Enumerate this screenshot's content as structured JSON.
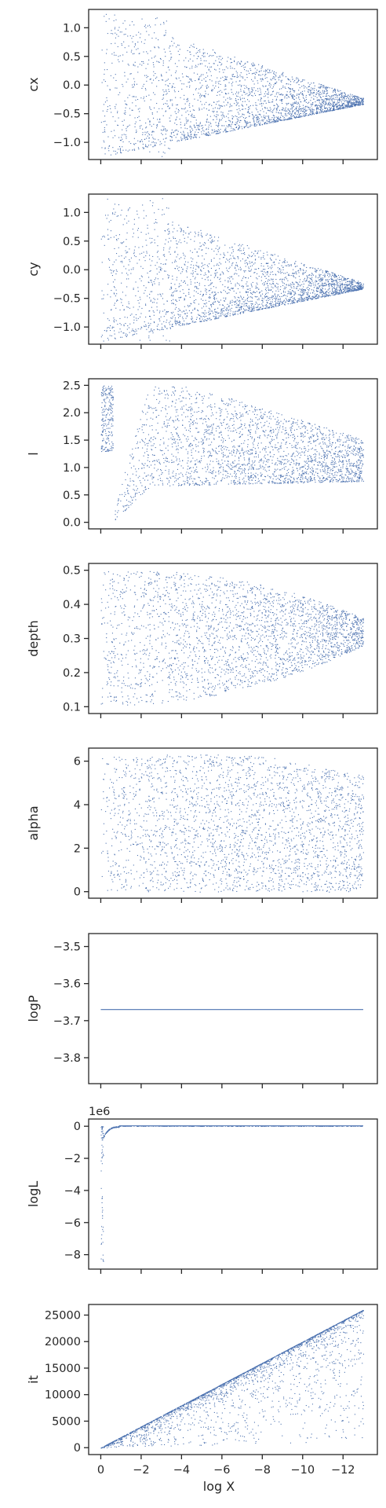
{
  "chart_data": [
    {
      "type": "scatter",
      "ylabel": "cx",
      "yticks": [
        "1.0",
        "0.5",
        "0.0",
        "−0.5",
        "−1.0"
      ],
      "ylim": [
        -1.3,
        1.32
      ],
      "series": [
        {
          "color": "#4c72b0",
          "marker": "point"
        }
      ]
    },
    {
      "type": "scatter",
      "ylabel": "cy",
      "yticks": [
        "1.0",
        "0.5",
        "0.0",
        "−0.5",
        "−1.0"
      ],
      "ylim": [
        -1.3,
        1.32
      ],
      "series": [
        {
          "color": "#4c72b0",
          "marker": "point"
        }
      ]
    },
    {
      "type": "scatter",
      "ylabel": "l",
      "yticks": [
        "2.5",
        "2.0",
        "1.5",
        "1.0",
        "0.5",
        "0.0"
      ],
      "ylim": [
        -0.12,
        2.62
      ],
      "series": [
        {
          "color": "#4c72b0",
          "marker": "point"
        }
      ]
    },
    {
      "type": "scatter",
      "ylabel": "depth",
      "yticks": [
        "0.5",
        "0.4",
        "0.3",
        "0.2",
        "0.1"
      ],
      "ylim": [
        0.08,
        0.52
      ],
      "series": [
        {
          "color": "#4c72b0",
          "marker": "point"
        }
      ]
    },
    {
      "type": "scatter",
      "ylabel": "alpha",
      "yticks": [
        "6",
        "4",
        "2",
        "0"
      ],
      "ylim": [
        -0.3,
        6.6
      ],
      "series": [
        {
          "color": "#4c72b0",
          "marker": "point"
        }
      ]
    },
    {
      "type": "line",
      "ylabel": "logP",
      "yticks": [
        "−3.5",
        "−3.6",
        "−3.7",
        "−3.8"
      ],
      "ylim": [
        -3.87,
        -3.465
      ],
      "series": [
        {
          "color": "#4c72b0",
          "values": [
            -3.67,
            -3.67
          ]
        }
      ]
    },
    {
      "type": "scatter",
      "ylabel": "logL",
      "offset_label": "1e6",
      "yticks": [
        "0",
        "−2",
        "−4",
        "−6",
        "−8"
      ],
      "ylim": [
        -8.9,
        0.45
      ],
      "series": [
        {
          "color": "#4c72b0",
          "marker": "point"
        }
      ]
    },
    {
      "type": "scatter",
      "ylabel": "it",
      "xlabel": "log X",
      "yticks": [
        "25000",
        "20000",
        "15000",
        "10000",
        "5000",
        "0"
      ],
      "ylim": [
        -1300,
        27000
      ],
      "xticks": [
        "0",
        "−2",
        "−4",
        "−6",
        "−8",
        "−10",
        "−12"
      ],
      "xlim": [
        0.6,
        -13.7
      ],
      "x_direction": "decreasing",
      "series": [
        {
          "color": "#4c72b0",
          "marker": "point"
        }
      ]
    }
  ]
}
